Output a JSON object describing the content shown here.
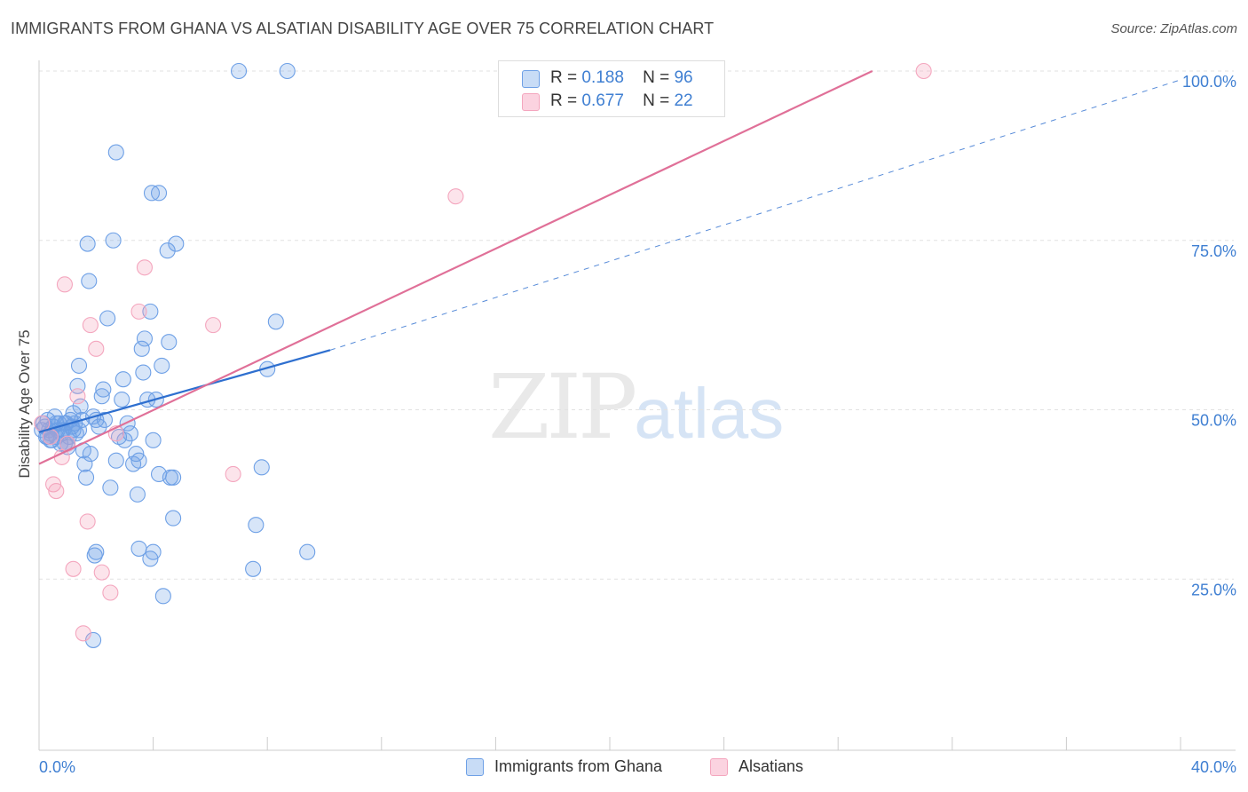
{
  "title": "IMMIGRANTS FROM GHANA VS ALSATIAN DISABILITY AGE OVER 75 CORRELATION CHART",
  "source": "Source: ZipAtlas.com",
  "watermark": {
    "zip": "ZIP",
    "atlas": "atlas"
  },
  "legend": {
    "rows": [
      {
        "r_label": "R =",
        "r_value": "0.188",
        "n_label": "N =",
        "n_value": "96"
      },
      {
        "r_label": "R =",
        "r_value": "0.677",
        "n_label": "N =",
        "n_value": "22"
      }
    ]
  },
  "chart_data": {
    "type": "scatter",
    "title": "IMMIGRANTS FROM GHANA VS ALSATIAN DISABILITY AGE OVER 75 CORRELATION CHART",
    "ylabel": "Disability Age Over 75",
    "xlabel": "",
    "xlim": [
      0,
      40
    ],
    "ylim": [
      0,
      100
    ],
    "x_tick_labels": [
      "0.0%",
      "40.0%"
    ],
    "y_tick_labels": [
      "25.0%",
      "50.0%",
      "75.0%",
      "100.0%"
    ],
    "y_ticks": [
      25,
      50,
      75,
      100
    ],
    "legend_position": "bottom-center",
    "series": [
      {
        "name": "Immigrants from Ghana",
        "color": "#6ea0e6",
        "line_color": "#2e6fcf",
        "trend": {
          "x": [
            0,
            10.2
          ],
          "y": [
            46.7,
            58.8
          ],
          "dashed_to": [
            40,
            98.7
          ]
        },
        "points": [
          [
            0.1,
            47
          ],
          [
            0.15,
            48
          ],
          [
            0.2,
            47.5
          ],
          [
            0.25,
            46
          ],
          [
            0.3,
            48.5
          ],
          [
            0.35,
            47
          ],
          [
            0.4,
            46.5
          ],
          [
            0.45,
            45.5
          ],
          [
            0.5,
            47.5
          ],
          [
            0.55,
            49
          ],
          [
            0.6,
            46
          ],
          [
            0.65,
            47
          ],
          [
            0.7,
            48
          ],
          [
            0.75,
            45
          ],
          [
            0.8,
            46.5
          ],
          [
            0.85,
            47
          ],
          [
            0.9,
            45
          ],
          [
            0.95,
            48
          ],
          [
            1.0,
            44.5
          ],
          [
            1.05,
            46
          ],
          [
            1.1,
            48.5
          ],
          [
            1.15,
            47.5
          ],
          [
            1.2,
            49.5
          ],
          [
            1.25,
            48
          ],
          [
            1.3,
            46.5
          ],
          [
            1.35,
            53.5
          ],
          [
            1.4,
            56.5
          ],
          [
            1.45,
            50.5
          ],
          [
            1.5,
            48.5
          ],
          [
            1.55,
            44
          ],
          [
            1.6,
            42
          ],
          [
            1.65,
            40
          ],
          [
            1.7,
            74.5
          ],
          [
            1.8,
            43.5
          ],
          [
            1.9,
            49
          ],
          [
            2.0,
            48.5
          ],
          [
            2.1,
            47.5
          ],
          [
            2.2,
            52
          ],
          [
            2.25,
            53
          ],
          [
            2.3,
            48.5
          ],
          [
            2.4,
            63.5
          ],
          [
            2.5,
            38.5
          ],
          [
            2.6,
            75
          ],
          [
            2.7,
            42.5
          ],
          [
            2.8,
            46
          ],
          [
            2.9,
            51.5
          ],
          [
            2.95,
            54.5
          ],
          [
            3.0,
            45.5
          ],
          [
            3.1,
            48
          ],
          [
            3.2,
            46.5
          ],
          [
            3.3,
            42
          ],
          [
            3.4,
            43.5
          ],
          [
            3.45,
            37.5
          ],
          [
            3.5,
            42.5
          ],
          [
            3.6,
            59
          ],
          [
            3.65,
            55.5
          ],
          [
            3.7,
            60.5
          ],
          [
            3.8,
            51.5
          ],
          [
            3.9,
            64.5
          ],
          [
            4.0,
            45.5
          ],
          [
            4.1,
            51.5
          ],
          [
            4.2,
            40.5
          ],
          [
            4.3,
            56.5
          ],
          [
            4.5,
            73.5
          ],
          [
            4.55,
            60
          ],
          [
            4.6,
            40
          ],
          [
            4.7,
            34
          ],
          [
            4.8,
            74.5
          ],
          [
            1.75,
            69
          ],
          [
            2.7,
            88
          ],
          [
            3.95,
            82
          ],
          [
            4.2,
            82
          ],
          [
            7.0,
            100
          ],
          [
            8.7,
            100
          ],
          [
            1.95,
            28.5
          ],
          [
            2.0,
            29
          ],
          [
            3.5,
            29.5
          ],
          [
            3.9,
            28
          ],
          [
            4.0,
            29
          ],
          [
            4.35,
            22.5
          ],
          [
            4.7,
            40
          ],
          [
            7.5,
            26.5
          ],
          [
            7.6,
            33
          ],
          [
            7.8,
            41.5
          ],
          [
            8.0,
            56
          ],
          [
            8.3,
            63
          ],
          [
            9.4,
            29
          ],
          [
            1.9,
            16
          ],
          [
            0.3,
            46
          ],
          [
            0.8,
            47
          ],
          [
            1.2,
            47
          ],
          [
            1.4,
            47
          ],
          [
            0.6,
            48
          ],
          [
            0.9,
            48
          ],
          [
            0.4,
            45.5
          ],
          [
            1.0,
            45
          ]
        ]
      },
      {
        "name": "Alsatians",
        "color": "#f4a6be",
        "line_color": "#e07098",
        "trend": {
          "x": [
            0,
            29.2
          ],
          "y": [
            42,
            100
          ]
        },
        "points": [
          [
            0.1,
            48
          ],
          [
            0.4,
            46
          ],
          [
            0.5,
            39
          ],
          [
            0.6,
            38
          ],
          [
            0.8,
            43
          ],
          [
            0.9,
            68.5
          ],
          [
            1.0,
            45
          ],
          [
            1.2,
            26.5
          ],
          [
            1.35,
            52
          ],
          [
            1.55,
            17
          ],
          [
            1.7,
            33.5
          ],
          [
            1.8,
            62.5
          ],
          [
            2.0,
            59
          ],
          [
            2.2,
            26
          ],
          [
            2.5,
            23
          ],
          [
            2.7,
            46.5
          ],
          [
            3.5,
            64.5
          ],
          [
            3.7,
            71
          ],
          [
            6.1,
            62.5
          ],
          [
            6.8,
            40.5
          ],
          [
            14.6,
            81.5
          ],
          [
            31.0,
            100
          ]
        ]
      }
    ]
  },
  "bottom_legend": {
    "items": [
      {
        "label": "Immigrants from Ghana",
        "color": "#6ea0e6"
      },
      {
        "label": "Alsatians",
        "color": "#f4a6be"
      }
    ]
  }
}
